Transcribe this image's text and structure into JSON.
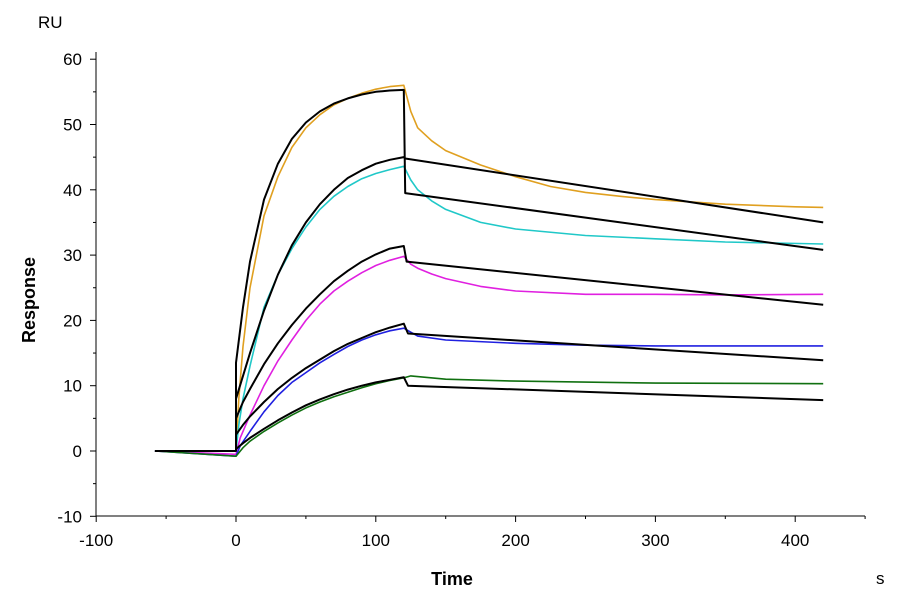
{
  "chart_data": {
    "type": "line",
    "title": "",
    "xlabel": "Time",
    "ylabel": "Response",
    "x_unit": "s",
    "y_unit": "RU",
    "xlim": [
      -100,
      450
    ],
    "ylim": [
      -10,
      60
    ],
    "xticks": [
      -100,
      0,
      100,
      200,
      300,
      400
    ],
    "yticks": [
      -10,
      0,
      10,
      20,
      30,
      40,
      50,
      60
    ],
    "grid": false,
    "legend": "none",
    "series": [
      {
        "name": "data-orange",
        "color": "#E0A020",
        "points": [
          [
            -58,
            0
          ],
          [
            0,
            0
          ],
          [
            2,
            8
          ],
          [
            5,
            16
          ],
          [
            10,
            25
          ],
          [
            20,
            36
          ],
          [
            30,
            42
          ],
          [
            40,
            46.5
          ],
          [
            50,
            49.5
          ],
          [
            60,
            51.5
          ],
          [
            70,
            53
          ],
          [
            80,
            54
          ],
          [
            90,
            54.8
          ],
          [
            100,
            55.4
          ],
          [
            110,
            55.8
          ],
          [
            120,
            56
          ],
          [
            125,
            52
          ],
          [
            130,
            49.5
          ],
          [
            140,
            47.5
          ],
          [
            150,
            46
          ],
          [
            175,
            43.8
          ],
          [
            200,
            42
          ],
          [
            225,
            40.5
          ],
          [
            250,
            39.6
          ],
          [
            275,
            39
          ],
          [
            300,
            38.5
          ],
          [
            350,
            37.8
          ],
          [
            400,
            37.4
          ],
          [
            420,
            37.3
          ]
        ]
      },
      {
        "name": "data-cyan",
        "color": "#20C8C8",
        "points": [
          [
            -58,
            0
          ],
          [
            0,
            0
          ],
          [
            2,
            4
          ],
          [
            5,
            8
          ],
          [
            10,
            13
          ],
          [
            20,
            22
          ],
          [
            30,
            27
          ],
          [
            40,
            31
          ],
          [
            50,
            34.3
          ],
          [
            60,
            37
          ],
          [
            70,
            39
          ],
          [
            80,
            40.5
          ],
          [
            90,
            41.7
          ],
          [
            100,
            42.5
          ],
          [
            110,
            43.1
          ],
          [
            120,
            43.6
          ],
          [
            125,
            41.5
          ],
          [
            130,
            40
          ],
          [
            140,
            38.3
          ],
          [
            150,
            37
          ],
          [
            175,
            35
          ],
          [
            200,
            34
          ],
          [
            250,
            33
          ],
          [
            300,
            32.5
          ],
          [
            350,
            32
          ],
          [
            420,
            31.7
          ]
        ]
      },
      {
        "name": "data-magenta",
        "color": "#E020E0",
        "points": [
          [
            -58,
            0
          ],
          [
            0,
            -0.5
          ],
          [
            3,
            2
          ],
          [
            10,
            5.5
          ],
          [
            20,
            10
          ],
          [
            30,
            13.8
          ],
          [
            40,
            17
          ],
          [
            50,
            20
          ],
          [
            60,
            22.5
          ],
          [
            70,
            24.5
          ],
          [
            80,
            26
          ],
          [
            90,
            27.3
          ],
          [
            100,
            28.4
          ],
          [
            110,
            29.2
          ],
          [
            120,
            29.8
          ],
          [
            125,
            28.6
          ],
          [
            130,
            28
          ],
          [
            140,
            27.1
          ],
          [
            150,
            26.4
          ],
          [
            175,
            25.2
          ],
          [
            200,
            24.5
          ],
          [
            250,
            24
          ],
          [
            300,
            24
          ],
          [
            350,
            23.9
          ],
          [
            420,
            24
          ]
        ]
      },
      {
        "name": "data-blue",
        "color": "#2020E0",
        "points": [
          [
            -58,
            0
          ],
          [
            0,
            -0.8
          ],
          [
            3,
            0.8
          ],
          [
            10,
            3
          ],
          [
            20,
            6
          ],
          [
            30,
            8.5
          ],
          [
            40,
            10.5
          ],
          [
            50,
            12
          ],
          [
            60,
            13.5
          ],
          [
            70,
            14.8
          ],
          [
            80,
            16
          ],
          [
            90,
            17
          ],
          [
            100,
            17.8
          ],
          [
            110,
            18.4
          ],
          [
            120,
            18.8
          ],
          [
            125,
            18.2
          ],
          [
            130,
            17.6
          ],
          [
            150,
            17
          ],
          [
            200,
            16.5
          ],
          [
            250,
            16.2
          ],
          [
            300,
            16.1
          ],
          [
            420,
            16.1
          ]
        ]
      },
      {
        "name": "data-green",
        "color": "#107010",
        "points": [
          [
            -58,
            0
          ],
          [
            0,
            -0.8
          ],
          [
            5,
            0.5
          ],
          [
            10,
            1.5
          ],
          [
            20,
            3
          ],
          [
            30,
            4.3
          ],
          [
            40,
            5.5
          ],
          [
            50,
            6.6
          ],
          [
            60,
            7.5
          ],
          [
            70,
            8.3
          ],
          [
            80,
            9
          ],
          [
            90,
            9.7
          ],
          [
            100,
            10.3
          ],
          [
            110,
            10.8
          ],
          [
            120,
            11.2
          ],
          [
            125,
            11.5
          ],
          [
            150,
            11
          ],
          [
            200,
            10.7
          ],
          [
            300,
            10.4
          ],
          [
            420,
            10.3
          ]
        ]
      },
      {
        "name": "fit-1",
        "color": "#000000",
        "points": [
          [
            -58,
            0
          ],
          [
            0,
            0
          ],
          [
            0,
            13.5
          ],
          [
            5,
            22
          ],
          [
            10,
            29
          ],
          [
            20,
            38.5
          ],
          [
            30,
            44
          ],
          [
            40,
            47.8
          ],
          [
            50,
            50.3
          ],
          [
            60,
            52
          ],
          [
            70,
            53.2
          ],
          [
            80,
            54
          ],
          [
            90,
            54.6
          ],
          [
            100,
            55
          ],
          [
            110,
            55.2
          ],
          [
            120,
            55.3
          ],
          [
            121,
            39.5
          ],
          [
            420,
            30.8
          ]
        ]
      },
      {
        "name": "fit-2",
        "color": "#000000",
        "points": [
          [
            0,
            0
          ],
          [
            0,
            8
          ],
          [
            5,
            11.5
          ],
          [
            10,
            15
          ],
          [
            20,
            21.5
          ],
          [
            30,
            27
          ],
          [
            40,
            31.5
          ],
          [
            50,
            35
          ],
          [
            60,
            37.8
          ],
          [
            70,
            40
          ],
          [
            80,
            41.8
          ],
          [
            90,
            43
          ],
          [
            100,
            44
          ],
          [
            110,
            44.6
          ],
          [
            120,
            45
          ],
          [
            121,
            44.8
          ],
          [
            420,
            35
          ]
        ]
      },
      {
        "name": "fit-3",
        "color": "#000000",
        "points": [
          [
            0,
            0
          ],
          [
            0,
            5
          ],
          [
            5,
            7.5
          ],
          [
            10,
            9.5
          ],
          [
            20,
            13.3
          ],
          [
            30,
            16.5
          ],
          [
            40,
            19.3
          ],
          [
            50,
            21.8
          ],
          [
            60,
            24
          ],
          [
            70,
            26
          ],
          [
            80,
            27.6
          ],
          [
            90,
            29
          ],
          [
            100,
            30.1
          ],
          [
            110,
            31
          ],
          [
            120,
            31.4
          ],
          [
            122,
            29
          ],
          [
            420,
            22.4
          ]
        ]
      },
      {
        "name": "fit-4",
        "color": "#000000",
        "points": [
          [
            0,
            0
          ],
          [
            0,
            2.5
          ],
          [
            5,
            4
          ],
          [
            10,
            5.3
          ],
          [
            20,
            7.5
          ],
          [
            30,
            9.5
          ],
          [
            40,
            11.2
          ],
          [
            50,
            12.7
          ],
          [
            60,
            14
          ],
          [
            70,
            15.3
          ],
          [
            80,
            16.4
          ],
          [
            90,
            17.3
          ],
          [
            100,
            18.2
          ],
          [
            110,
            18.9
          ],
          [
            120,
            19.5
          ],
          [
            123,
            18
          ],
          [
            420,
            13.9
          ]
        ]
      },
      {
        "name": "fit-5",
        "color": "#000000",
        "points": [
          [
            0,
            0
          ],
          [
            0,
            0.3
          ],
          [
            5,
            1.2
          ],
          [
            10,
            2
          ],
          [
            20,
            3.4
          ],
          [
            30,
            4.7
          ],
          [
            40,
            5.9
          ],
          [
            50,
            7
          ],
          [
            60,
            7.9
          ],
          [
            70,
            8.7
          ],
          [
            80,
            9.4
          ],
          [
            90,
            10
          ],
          [
            100,
            10.5
          ],
          [
            110,
            10.9
          ],
          [
            120,
            11.3
          ],
          [
            123,
            10
          ],
          [
            420,
            7.8
          ]
        ]
      }
    ]
  }
}
